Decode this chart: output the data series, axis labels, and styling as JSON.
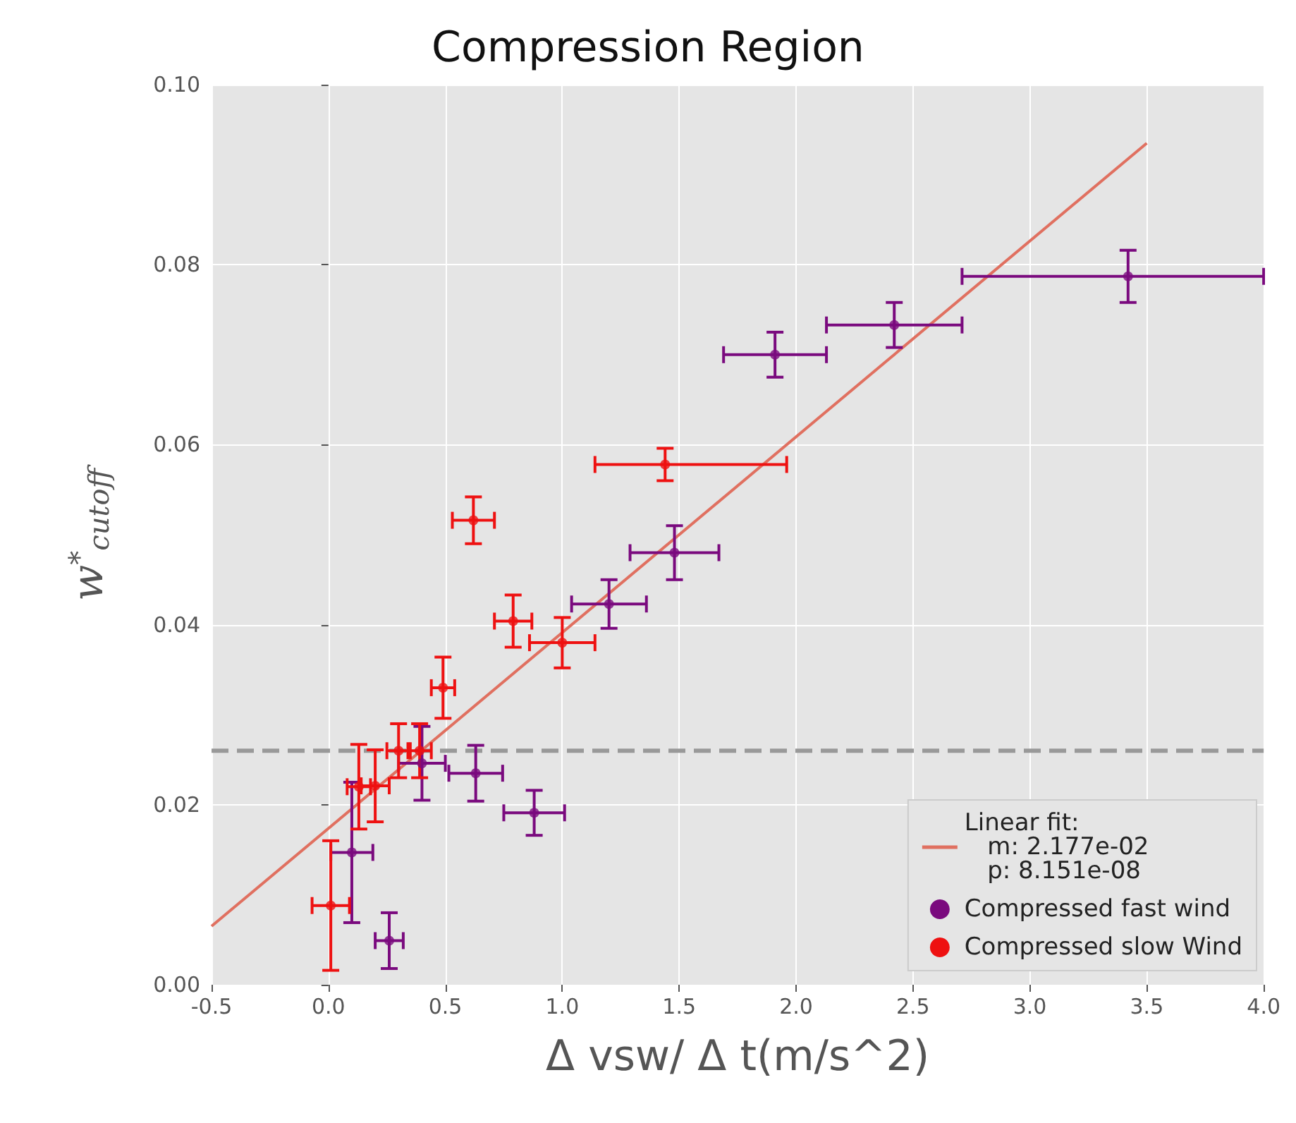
{
  "chart_data": {
    "type": "scatter",
    "title": "Compression Region",
    "xlabel": "Δ vsw/ Δ t(m/s^2)",
    "ylabel": "w$^{*}$$_{cutoff}$",
    "xlim": [
      -0.5,
      4.0
    ],
    "ylim": [
      0.0,
      0.1
    ],
    "xticks": [
      {
        "value": -0.5,
        "label": "-0.5"
      },
      {
        "value": 0,
        "label": "0.0"
      },
      {
        "value": 0.5,
        "label": "0.5"
      },
      {
        "value": 1,
        "label": "1.0"
      },
      {
        "value": 1.5,
        "label": "1.5"
      },
      {
        "value": 2,
        "label": "2.0"
      },
      {
        "value": 2.5,
        "label": "2.5"
      },
      {
        "value": 3,
        "label": "3.0"
      },
      {
        "value": 3.5,
        "label": "3.5"
      },
      {
        "value": 4,
        "label": "4.0"
      }
    ],
    "yticks": [
      {
        "value": 0,
        "label": "0.00"
      },
      {
        "value": 0.02,
        "label": "0.02"
      },
      {
        "value": 0.04,
        "label": "0.04"
      },
      {
        "value": 0.06,
        "label": "0.06"
      },
      {
        "value": 0.08,
        "label": "0.08"
      },
      {
        "value": 0.1,
        "label": "0.10"
      }
    ],
    "grid": true,
    "legend": "bottom right",
    "marker": "circle",
    "ref_lines": [
      {
        "axis": "y",
        "value": 0.026,
        "color": "#999999",
        "line_style": "dashed"
      }
    ],
    "series": [
      {
        "type": "line",
        "name": "Linear fit:\n   m: 2.177e-02\n   p: 8.151e-08",
        "color": "#e07060",
        "marker": "none",
        "x": [
          -0.5,
          3.5
        ],
        "values": [
          0.0065,
          0.0935
        ]
      },
      {
        "name": "Compressed fast wind",
        "color": "#7a0a7e",
        "x": [
          0.4,
          0.63,
          0.88,
          0.1,
          0.26,
          1.2,
          1.48,
          1.91,
          2.42,
          3.42
        ],
        "values": [
          0.0246,
          0.0235,
          0.0191,
          0.0147,
          0.0049,
          0.0423,
          0.048,
          0.07,
          0.0733,
          0.0787
        ],
        "errors": [
          0.0041,
          0.0031,
          0.0025,
          0.0078,
          0.0031,
          0.0027,
          0.003,
          0.0025,
          0.0025,
          0.0029
        ],
        "xerrors": [
          0.1,
          0.115,
          0.13,
          0.09,
          0.06,
          0.16,
          0.19,
          0.22,
          0.29,
          [
            2.71,
            4.0
          ]
        ]
      },
      {
        "name": "Compressed slow Wind",
        "color": "#ee1111",
        "x": [
          0.62,
          0.79,
          1.0,
          0.49,
          0.39,
          0.3,
          0.2,
          0.13,
          0.01,
          1.44
        ],
        "values": [
          0.0516,
          0.0404,
          0.038,
          0.033,
          0.026,
          0.026,
          0.0221,
          0.022,
          0.0088,
          0.0578
        ],
        "errors": [
          0.0026,
          0.0029,
          0.0028,
          0.0034,
          0.003,
          0.003,
          0.004,
          0.0047,
          0.0072,
          0.0018
        ],
        "xerrors": [
          0.09,
          0.08,
          0.14,
          0.05,
          0.05,
          0.05,
          0.06,
          0.05,
          0.08,
          [
            1.14,
            1.96
          ]
        ]
      }
    ]
  }
}
